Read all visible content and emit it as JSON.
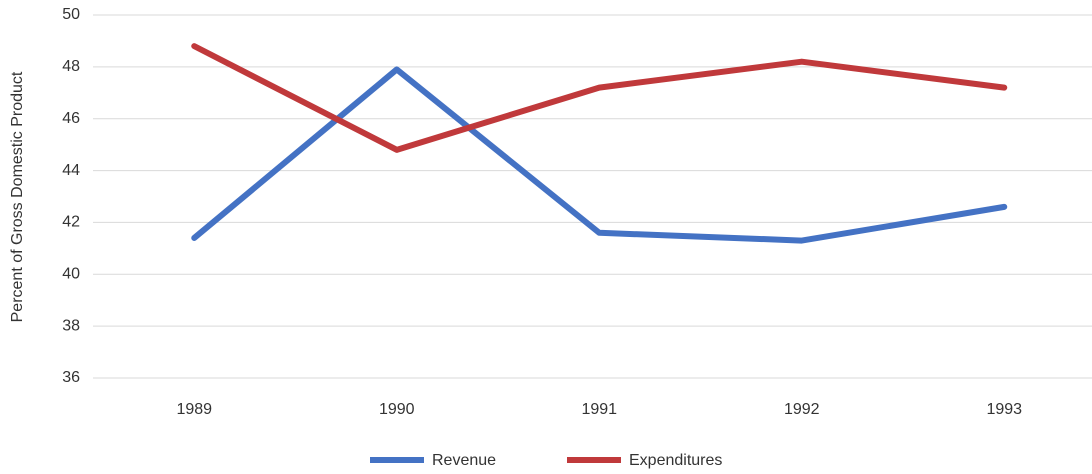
{
  "chart_data": {
    "type": "line",
    "y_label": "Percent of Gross Domestic Product",
    "categories": [
      "1989",
      "1990",
      "1991",
      "1992",
      "1993"
    ],
    "series": [
      {
        "name": "Revenue",
        "color": "#4472c4",
        "values": [
          41.4,
          47.9,
          41.6,
          41.3,
          42.6
        ]
      },
      {
        "name": "Expenditures",
        "color": "#c0393b",
        "values": [
          48.8,
          44.8,
          47.2,
          48.2,
          47.2
        ]
      }
    ],
    "ylim": [
      36,
      50
    ],
    "yticks": [
      36,
      38,
      40,
      42,
      44,
      46,
      48,
      50
    ],
    "grid": true,
    "legend": "bottom"
  }
}
